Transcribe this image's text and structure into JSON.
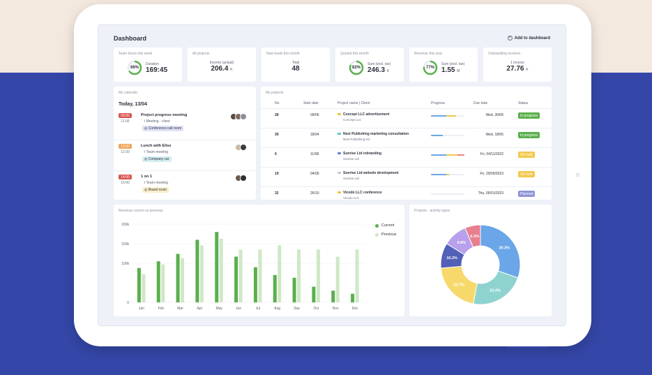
{
  "header": {
    "title": "Dashboard",
    "add_label": "Add to dashboard"
  },
  "kpis": [
    {
      "title": "Team hours this week",
      "label": "Duration",
      "value": "169:45",
      "unit": "",
      "ring_percent": 66,
      "ring_label": "66%",
      "ring_color": "#5ab04c"
    },
    {
      "title": "All projects",
      "label": "Income (actual)",
      "value": "206.4",
      "unit": "K"
    },
    {
      "title": "New leads this month",
      "label": "Total",
      "value": "48",
      "unit": ""
    },
    {
      "title": "Quoted this month",
      "label": "Sum (excl. tax)",
      "value": "246.3",
      "unit": "K",
      "ring_percent": 82,
      "ring_label": "82%",
      "ring_color": "#5ab04c"
    },
    {
      "title": "Revenue this year",
      "label": "Sum (excl. tax)",
      "value": "1.55",
      "unit": "M",
      "ring_percent": 77,
      "ring_label": "77%",
      "ring_color": "#5ab04c"
    },
    {
      "title": "Outstanding invoices",
      "label": "1 invoice",
      "value": "27.76",
      "unit": "K"
    }
  ],
  "calendar": {
    "title": "My calendar",
    "today": "Today, 13/04",
    "events": [
      {
        "start": "09:00",
        "end": "11:00",
        "start_color": "#d9534f",
        "title": "Project progress meeting",
        "type": "Meeting - client",
        "location": "Conference call room",
        "loc_color": "#dfe2f7",
        "avatars": [
          "#5b4a3f",
          "#7a6a60",
          "#8c8f99"
        ]
      },
      {
        "start": "12:00",
        "end": "12:30",
        "start_color": "#f0a45a",
        "title": "Lunch with Elise",
        "type": "Team meeting",
        "location": "Company car",
        "loc_color": "#d4eef2",
        "avatars": [
          "#c9b8a5",
          "#3c3c3c"
        ]
      },
      {
        "start": "14:00",
        "end": "15:00",
        "start_color": "#d9534f",
        "title": "1 on 1",
        "type": "Team meeting",
        "location": "Board room",
        "loc_color": "#fbefc9",
        "avatars": [
          "#6b5b50",
          "#2f2f2f"
        ]
      }
    ]
  },
  "projects": {
    "title": "My projects",
    "columns": [
      "No",
      "Start date",
      "Project name | Client",
      "Progress",
      "Due date",
      "Status"
    ],
    "rows": [
      {
        "no": "28",
        "start": "09/06",
        "name": "Concept LLC advertisement",
        "client": "Concept LLC",
        "dot": "#f0c23a",
        "progress": 0.75,
        "due": "Wed, 30/06",
        "status": "In progress",
        "status_color": "#5ab04c"
      },
      {
        "no": "39",
        "start": "18/04",
        "name": "Next Publishing marketing consultation",
        "client": "Next Publishing AG",
        "dot": "#5bc7c9",
        "progress": 0.35,
        "due": "Wed, 18/05",
        "status": "In progress",
        "status_color": "#5ab04c"
      },
      {
        "no": "6",
        "start": "11/08",
        "name": "Sunrise Ltd rebranding",
        "client": "Sunrise Ltd",
        "dot": "#6b7fd6",
        "progress": 1.0,
        "due": "Fri, 04/11/2022",
        "status": "On hold",
        "status_color": "#f2c94c"
      },
      {
        "no": "19",
        "start": "04/09",
        "name": "Sunrise Ltd website development",
        "client": "Sunrise Ltd",
        "dot": "#c8cbd3",
        "progress": 0.55,
        "due": "Fri, 29/09/2023",
        "status": "On hold",
        "status_color": "#f2c94c"
      },
      {
        "no": "32",
        "start": "26/10",
        "name": "Vicodo LLC conference",
        "client": "Vicodo LLC",
        "dot": "#f0c23a",
        "progress": 0.0,
        "due": "Thu, 05/01/2023",
        "status": "Planned",
        "status_color": "#8f95d6"
      }
    ]
  },
  "revenue": {
    "title": "Revenue current vs previous",
    "chart_data": {
      "type": "bar",
      "categories": [
        "Jan",
        "Feb",
        "Mar",
        "Apr",
        "May",
        "Jun",
        "Jul",
        "Aug",
        "Sep",
        "Oct",
        "Nov",
        "Dec"
      ],
      "series": [
        {
          "name": "Current",
          "color": "#5ab04c",
          "values": [
            88,
            105,
            124,
            160,
            180,
            117,
            90,
            70,
            63,
            40,
            30,
            22
          ]
        },
        {
          "name": "Previous",
          "color": "#cfe8c6",
          "values": [
            72,
            97,
            113,
            146,
            163,
            135,
            135,
            146,
            135,
            135,
            117,
            135
          ]
        }
      ],
      "yticks": [
        "0",
        "100k",
        "150k",
        "200k"
      ],
      "ylim": [
        0,
        200
      ]
    }
  },
  "activity": {
    "title": "Projects - activity types",
    "chart_data": {
      "type": "pie",
      "slices": [
        {
          "label": "30.3%",
          "value": 30.3,
          "color": "#6aa6e8"
        },
        {
          "label": "22.4%",
          "value": 22.4,
          "color": "#8fd3cf"
        },
        {
          "label": "20.7%",
          "value": 20.7,
          "color": "#f7d96b"
        },
        {
          "label": "10.2%",
          "value": 10.2,
          "color": "#5360b8"
        },
        {
          "label": "9.8%",
          "value": 9.8,
          "color": "#b8a0ec"
        },
        {
          "label": "6.3%",
          "value": 6.3,
          "color": "#e87f8e"
        }
      ]
    }
  }
}
